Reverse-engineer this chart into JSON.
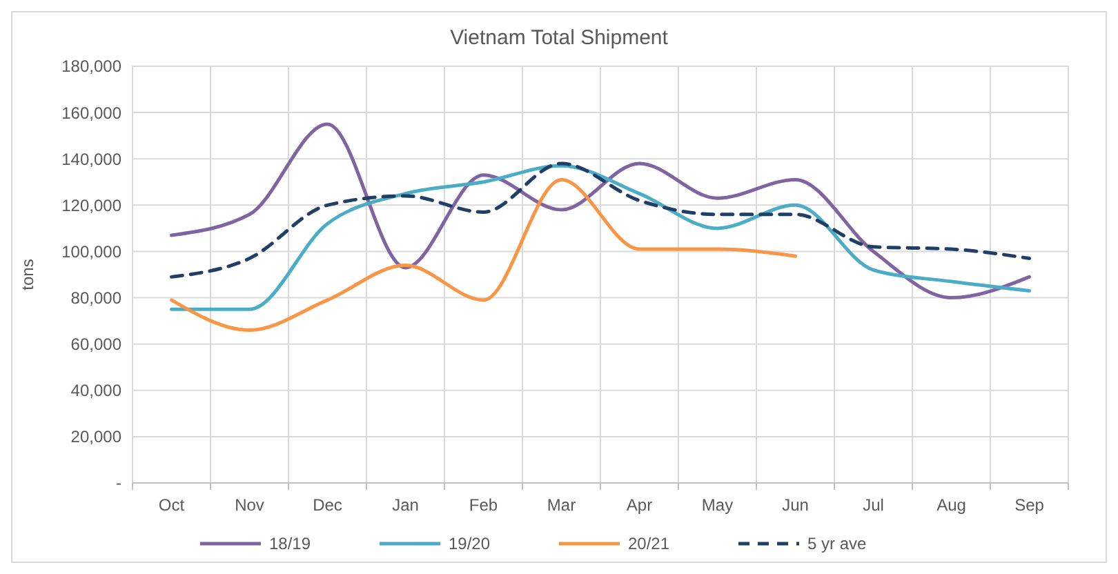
{
  "chart_data": {
    "type": "line",
    "title": "Vietnam Total Shipment",
    "ylabel": "tons",
    "categories": [
      "Oct",
      "Nov",
      "Dec",
      "Jan",
      "Feb",
      "Mar",
      "Apr",
      "May",
      "Jun",
      "Jul",
      "Aug",
      "Sep"
    ],
    "series": [
      {
        "name": "18/19",
        "color": "#8064a2",
        "values": [
          107000,
          116000,
          155000,
          93000,
          133000,
          118000,
          138000,
          123000,
          131000,
          100000,
          80000,
          89000
        ]
      },
      {
        "name": "19/20",
        "color": "#4bacc6",
        "values": [
          75000,
          75000,
          112000,
          125000,
          130000,
          137000,
          125000,
          110000,
          120000,
          92000,
          87000,
          83000
        ]
      },
      {
        "name": "20/21",
        "color": "#f79646",
        "values": [
          79000,
          66000,
          79000,
          94000,
          79000,
          131000,
          101000,
          101000,
          98000,
          null,
          null,
          null
        ]
      },
      {
        "name": "5 yr ave",
        "color": "#1f3f66",
        "line_style": "dashed",
        "values": [
          89000,
          97000,
          120000,
          124000,
          117000,
          138000,
          122000,
          116000,
          116000,
          102000,
          101000,
          97000
        ]
      }
    ],
    "ylim": [
      0,
      180000
    ],
    "yticks": [
      {
        "value": 0,
        "label": "-"
      },
      {
        "value": 20000,
        "label": "20,000"
      },
      {
        "value": 40000,
        "label": "40,000"
      },
      {
        "value": 60000,
        "label": "60,000"
      },
      {
        "value": 80000,
        "label": "80,000"
      },
      {
        "value": 100000,
        "label": "100,000"
      },
      {
        "value": 120000,
        "label": "120,000"
      },
      {
        "value": 140000,
        "label": "140,000"
      },
      {
        "value": 160000,
        "label": "160,000"
      },
      {
        "value": 180000,
        "label": "180,000"
      }
    ],
    "grid": true,
    "legend": "bottom"
  }
}
